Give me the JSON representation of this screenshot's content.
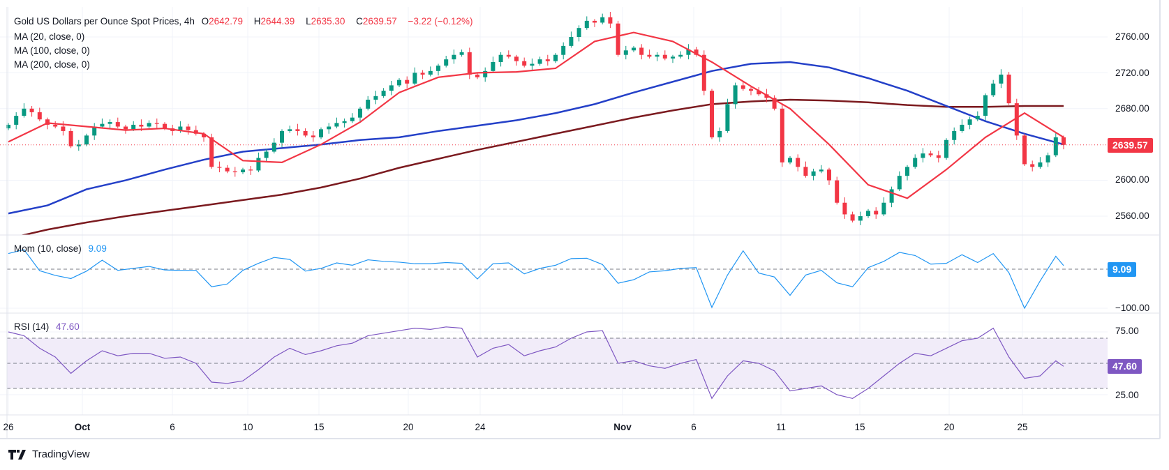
{
  "header": {
    "title": "Gold US Dollars per Ounce Spot Prices, 4h",
    "open_prefix": "O",
    "open": "2642.79",
    "high_prefix": "H",
    "high": "2644.39",
    "low_prefix": "L",
    "low": "2635.30",
    "close_prefix": "C",
    "close": "2639.57",
    "change": "−3.22 (−0.12%)"
  },
  "indicators": {
    "ma20": "MA (20, close, 0)",
    "ma100": "MA (100, close, 0)",
    "ma200": "MA (200, close, 0)",
    "mom_label": "Mom (10, close)",
    "mom_value": "9.09",
    "rsi_label": "RSI (14)",
    "rsi_value": "47.60"
  },
  "price_axis": [
    "2760.00",
    "2720.00",
    "2680.00",
    "2600.00",
    "2560.00"
  ],
  "last_price_tag": "2639.57",
  "mom_axis": [
    "−100.00"
  ],
  "rsi_axis": [
    "75.00",
    "25.00"
  ],
  "date_axis": [
    {
      "label": "26",
      "bold": false
    },
    {
      "label": "Oct",
      "bold": true
    },
    {
      "label": "6",
      "bold": false
    },
    {
      "label": "10",
      "bold": false
    },
    {
      "label": "15",
      "bold": false
    },
    {
      "label": "20",
      "bold": false
    },
    {
      "label": "24",
      "bold": false
    },
    {
      "label": "Nov",
      "bold": true
    },
    {
      "label": "6",
      "bold": false
    },
    {
      "label": "11",
      "bold": false
    },
    {
      "label": "15",
      "bold": false
    },
    {
      "label": "20",
      "bold": false
    },
    {
      "label": "25",
      "bold": false
    }
  ],
  "branding": "TradingView",
  "colors": {
    "up": "#089981",
    "down": "#f23645",
    "ma20": "#f23645",
    "ma100": "#2440c8",
    "ma200": "#7b1a1f",
    "mom": "#2196f3",
    "rsi": "#7e57c2",
    "rsi_band": "#f1ecf9"
  },
  "chart_data": {
    "type": "candlestick",
    "symbol": "Gold US Dollars per Ounce Spot Prices",
    "interval": "4h",
    "price_range": [
      2540,
      2790
    ],
    "price_ticks": [
      2560,
      2600,
      2680,
      2720,
      2760
    ],
    "last_close": 2639.57,
    "closes": [
      2662,
      2672,
      2680,
      2676,
      2668,
      2662,
      2660,
      2655,
      2638,
      2640,
      2650,
      2660,
      2663,
      2665,
      2660,
      2657,
      2662,
      2660,
      2664,
      2663,
      2658,
      2655,
      2660,
      2656,
      2652,
      2648,
      2615,
      2614,
      2610,
      2609,
      2612,
      2611,
      2625,
      2632,
      2642,
      2655,
      2657,
      2655,
      2650,
      2648,
      2657,
      2660,
      2664,
      2666,
      2670,
      2680,
      2690,
      2694,
      2700,
      2706,
      2712,
      2708,
      2720,
      2718,
      2722,
      2728,
      2735,
      2740,
      2743,
      2718,
      2715,
      2722,
      2732,
      2740,
      2738,
      2733,
      2728,
      2730,
      2735,
      2733,
      2740,
      2750,
      2760,
      2770,
      2778,
      2776,
      2782,
      2775,
      2740,
      2745,
      2748,
      2740,
      2738,
      2740,
      2736,
      2738,
      2740,
      2746,
      2740,
      2700,
      2648,
      2655,
      2685,
      2706,
      2702,
      2700,
      2696,
      2692,
      2680,
      2620,
      2625,
      2615,
      2605,
      2610,
      2612,
      2600,
      2575,
      2562,
      2555,
      2560,
      2566,
      2562,
      2575,
      2590,
      2605,
      2615,
      2625,
      2630,
      2628,
      2625,
      2645,
      2655,
      2662,
      2668,
      2672,
      2695,
      2708,
      2718,
      2686,
      2650,
      2618,
      2615,
      2620,
      2628,
      2648,
      2639.57
    ],
    "ma20": [
      2643,
      2664,
      2660,
      2656,
      2658,
      2652,
      2622,
      2620,
      2640,
      2665,
      2698,
      2715,
      2720,
      2721,
      2725,
      2755,
      2765,
      2755,
      2732,
      2705,
      2680,
      2640,
      2595,
      2580,
      2612,
      2648,
      2675,
      2648
    ],
    "ma100": [
      2563,
      2572,
      2590,
      2600,
      2612,
      2623,
      2632,
      2636,
      2640,
      2645,
      2648,
      2655,
      2661,
      2667,
      2675,
      2685,
      2698,
      2710,
      2722,
      2730,
      2732,
      2726,
      2714,
      2700,
      2683,
      2666,
      2652,
      2640
    ],
    "ma200": [
      2535,
      2545,
      2553,
      2560,
      2566,
      2572,
      2578,
      2584,
      2592,
      2602,
      2614,
      2624,
      2634,
      2643,
      2652,
      2661,
      2670,
      2678,
      2685,
      2688,
      2690,
      2689,
      2687,
      2684,
      2682,
      2682,
      2683,
      2683
    ],
    "momentum": {
      "values": [
        40,
        50,
        -4,
        -16,
        -24,
        -5,
        23,
        -3,
        2,
        7,
        -2,
        -3,
        -3,
        -45,
        -38,
        -3,
        15,
        30,
        25,
        -5,
        2,
        16,
        10,
        24,
        20,
        18,
        14,
        14,
        17,
        15,
        -25,
        14,
        16,
        -12,
        2,
        10,
        27,
        28,
        12,
        -36,
        -27,
        -7,
        -4,
        2,
        4,
        -98,
        -15,
        47,
        -10,
        -20,
        -67,
        -15,
        -3,
        -35,
        -45,
        4,
        20,
        43,
        35,
        13,
        15,
        37,
        17,
        40,
        -9,
        -100,
        -30,
        33,
        9.09
      ],
      "zero_line": 0,
      "ticks": [
        -100
      ]
    },
    "rsi": {
      "values": [
        75,
        72,
        62,
        55,
        42,
        52,
        60,
        56,
        58,
        58,
        54,
        55,
        50,
        35,
        34,
        36,
        45,
        55,
        62,
        57,
        60,
        64,
        66,
        72,
        74,
        76,
        78,
        77,
        79,
        78,
        55,
        62,
        65,
        56,
        60,
        63,
        70,
        75,
        76,
        50,
        52,
        48,
        46,
        50,
        53,
        22,
        40,
        52,
        50,
        44,
        28,
        30,
        32,
        25,
        22,
        30,
        40,
        50,
        58,
        56,
        62,
        68,
        70,
        78,
        55,
        38,
        40,
        52,
        47.6
      ],
      "levels": [
        30,
        50,
        70
      ],
      "ticks": [
        25,
        75
      ]
    }
  }
}
